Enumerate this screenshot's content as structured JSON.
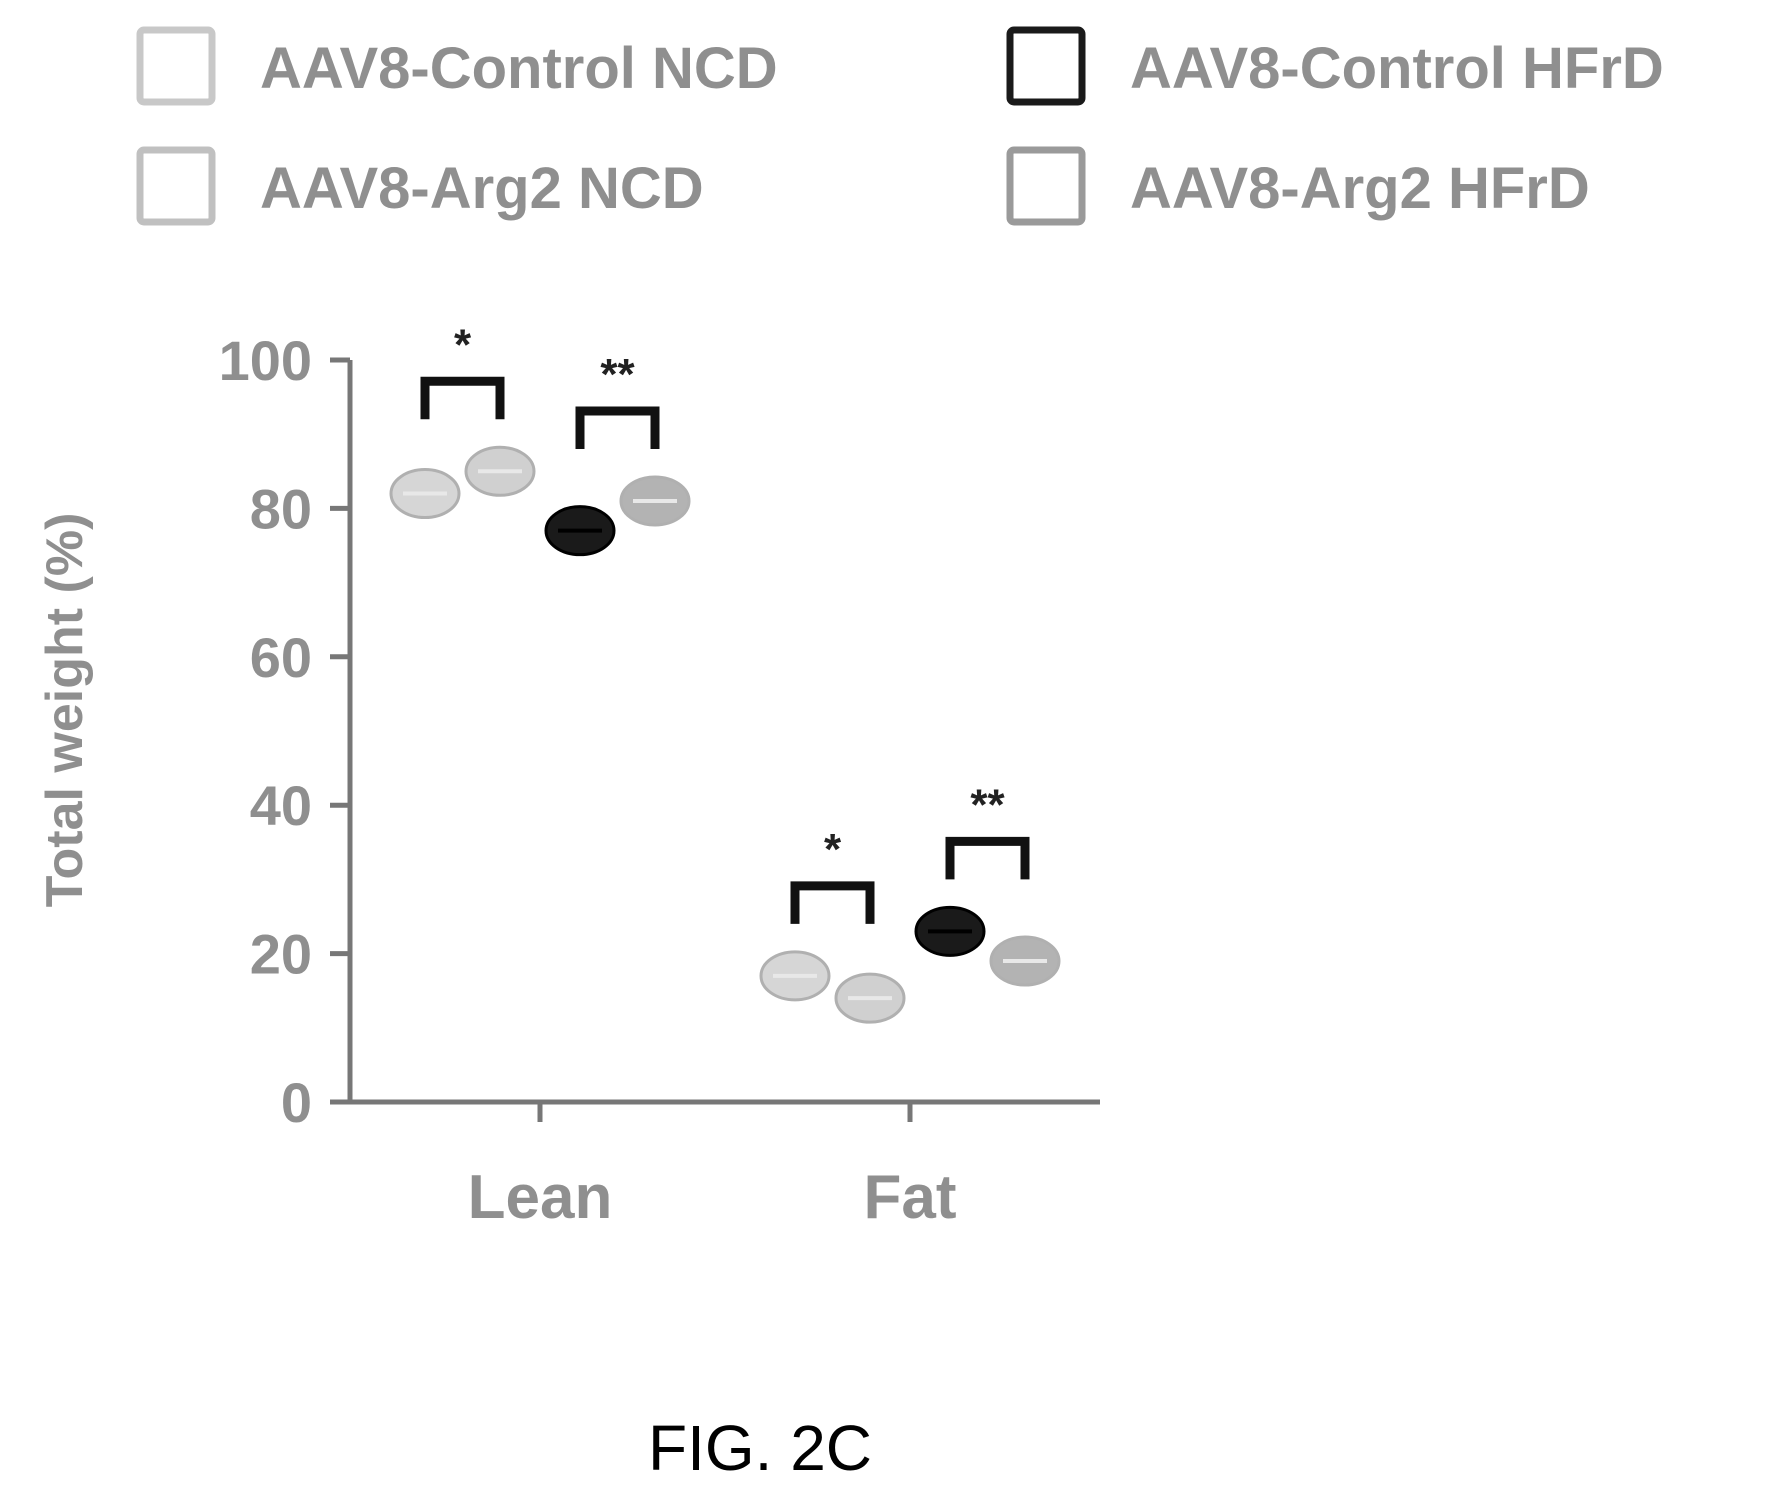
{
  "chart_data": {
    "type": "scatter",
    "title": "",
    "xlabel": "",
    "ylabel": "Total weight (%)",
    "ylim": [
      0,
      100
    ],
    "yticks": [
      "0",
      "20",
      "40",
      "60",
      "80",
      "100"
    ],
    "categories": [
      "Lean",
      "Fat"
    ],
    "legend_position": "top",
    "series": [
      {
        "name": "AAV8-Control NCD",
        "color": "#c8c8c8",
        "values": [
          82,
          17
        ]
      },
      {
        "name": "AAV8-Arg2 NCD",
        "color": "#c0c0c0",
        "values": [
          85,
          14
        ]
      },
      {
        "name": "AAV8-Control HFrD",
        "color": "#1a1a1a",
        "values": [
          77,
          23
        ]
      },
      {
        "name": "AAV8-Arg2 HFrD",
        "color": "#9a9a9a",
        "values": [
          81,
          19
        ]
      }
    ],
    "significance": [
      {
        "category": "Lean",
        "pair": [
          "AAV8-Control NCD",
          "AAV8-Arg2 NCD"
        ],
        "label": "*"
      },
      {
        "category": "Lean",
        "pair": [
          "AAV8-Control HFrD",
          "AAV8-Arg2 HFrD"
        ],
        "label": "**"
      },
      {
        "category": "Fat",
        "pair": [
          "AAV8-Control NCD",
          "AAV8-Arg2 NCD"
        ],
        "label": "*"
      },
      {
        "category": "Fat",
        "pair": [
          "AAV8-Control HFrD",
          "AAV8-Arg2 HFrD"
        ],
        "label": "**"
      }
    ]
  },
  "caption": "FIG. 2C"
}
